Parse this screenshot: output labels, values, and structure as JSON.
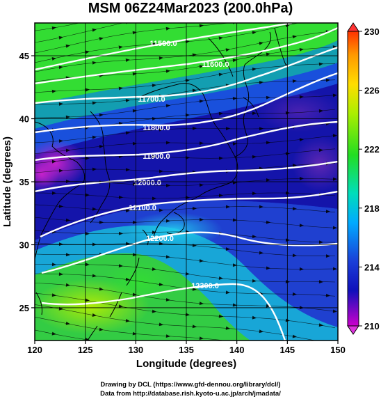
{
  "title": "MSM 06Z24Mar2023 (200.0hPa)",
  "credits": {
    "line1": "Drawing by DCL (https://www.gfd-dennou.org/library/dcl/)",
    "line2": "Data from http://database.rish.kyoto-u.ac.jp/arch/jmadata/"
  },
  "map": {
    "xlabel": "Longitude (degrees)",
    "ylabel": "Latitude  (degrees)",
    "xlim": [
      120,
      150
    ],
    "ylim": [
      22.4,
      47.6
    ],
    "x_ticks": [
      120,
      125,
      130,
      135,
      140,
      145,
      150
    ],
    "y_ticks": [
      25,
      30,
      35,
      40,
      45
    ],
    "grid": true
  },
  "colorbar": {
    "min": 210,
    "max": 230,
    "tick_values": [
      210,
      214,
      218,
      222,
      226,
      230
    ],
    "colors": [
      "#cc00cc",
      "#1010bb",
      "#1a3fd8",
      "#00aaff",
      "#00ddbb",
      "#22dd22",
      "#aaee00",
      "#ffdd00",
      "#ff9900",
      "#ff3300"
    ]
  },
  "contours": [
    {
      "label": "11500.0"
    },
    {
      "label": "11600.0"
    },
    {
      "label": "11700.0"
    },
    {
      "label": "11800.0"
    },
    {
      "label": "11900.0"
    },
    {
      "label": "12000.0"
    },
    {
      "label": "12100.0"
    },
    {
      "label": "12200.0"
    },
    {
      "label": "12300.0"
    }
  ]
}
